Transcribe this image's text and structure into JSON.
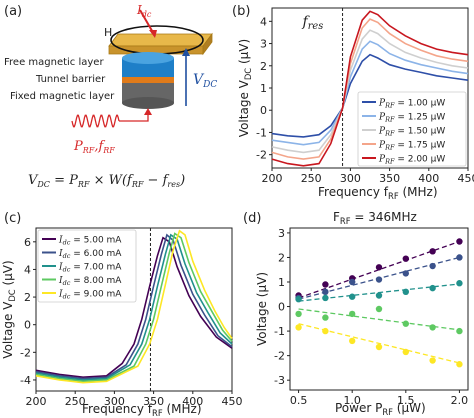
{
  "panels": {
    "a": "(a)",
    "b": "(b)",
    "c": "(c)",
    "d": "(d)"
  },
  "schematic": {
    "idc": "I",
    "idc_sub": "dc",
    "field": "H",
    "free_layer": "Free magnetic layer",
    "barrier": "Tunnel barrier",
    "fixed_layer": "Fixed magnetic layer",
    "vdc_label": "V",
    "vdc_sub": "DC",
    "prf_label": "P",
    "rf_sub": "RF",
    "frf_label": "f",
    "colors": {
      "free": "#1e7fc8",
      "barrier": "#e07b1a",
      "fixed": "#555555",
      "rf": "#d62728"
    }
  },
  "equation": {
    "lhs": "V",
    "lhs_sub": "DC",
    "eq": " = ",
    "p": "P",
    "p_sub": "RF",
    "times": " × W(",
    "f1": "f",
    "f1_sub": "RF",
    "minus": " − ",
    "f2": "f",
    "f2_sub": "res",
    "close": ")"
  },
  "chart_data": [
    {
      "panel": "b",
      "type": "line",
      "annotation": "f",
      "annotation_sub": "res",
      "vline_x": 290,
      "xlabel": "Frequency  f",
      "xlabel_sub": "RF",
      "xlabel_unit": " (MHz)",
      "ylabel": "Voltage  V",
      "ylabel_sub": "DC",
      "ylabel_unit": " (µV)",
      "xlim": [
        200,
        450
      ],
      "ylim": [
        -2.6,
        4.6
      ],
      "xticks": [
        200,
        250,
        300,
        350,
        400,
        450
      ],
      "yticks": [
        -2,
        -1,
        0,
        1,
        2,
        3,
        4
      ],
      "legend_position": "lower-right",
      "series": [
        {
          "name": "P",
          "sub": "RF",
          "value_text": " = 1.00 µW",
          "color": "#2e4fa8",
          "x": [
            200,
            220,
            240,
            260,
            275,
            290,
            300,
            315,
            325,
            335,
            350,
            370,
            390,
            410,
            430,
            450
          ],
          "y": [
            -1.05,
            -1.15,
            -1.2,
            -1.1,
            -0.7,
            0.1,
            1.2,
            2.2,
            2.5,
            2.35,
            2.05,
            1.85,
            1.7,
            1.55,
            1.45,
            1.35
          ]
        },
        {
          "name": "P",
          "sub": "RF",
          "value_text": " = 1.25 µW",
          "color": "#8cb4e8",
          "x": [
            200,
            220,
            240,
            260,
            275,
            290,
            300,
            315,
            325,
            335,
            350,
            370,
            390,
            410,
            430,
            450
          ],
          "y": [
            -1.35,
            -1.45,
            -1.55,
            -1.45,
            -0.9,
            0.1,
            1.5,
            2.75,
            3.1,
            2.95,
            2.55,
            2.25,
            2.05,
            1.9,
            1.75,
            1.65
          ]
        },
        {
          "name": "P",
          "sub": "RF",
          "value_text": " = 1.50 µW",
          "color": "#cfcfcf",
          "x": [
            200,
            220,
            240,
            260,
            275,
            290,
            300,
            315,
            325,
            335,
            350,
            370,
            390,
            410,
            430,
            450
          ],
          "y": [
            -1.65,
            -1.8,
            -1.9,
            -1.8,
            -1.1,
            0.1,
            1.8,
            3.2,
            3.6,
            3.45,
            3.0,
            2.6,
            2.35,
            2.15,
            2.0,
            1.9
          ]
        },
        {
          "name": "P",
          "sub": "RF",
          "value_text": " = 1.75 µW",
          "color": "#f4a58a",
          "x": [
            200,
            220,
            240,
            260,
            275,
            290,
            300,
            315,
            325,
            335,
            350,
            370,
            390,
            410,
            430,
            450
          ],
          "y": [
            -1.9,
            -2.1,
            -2.2,
            -2.1,
            -1.3,
            0.1,
            2.1,
            3.7,
            4.1,
            3.95,
            3.45,
            3.0,
            2.7,
            2.45,
            2.3,
            2.2
          ]
        },
        {
          "name": "P",
          "sub": "RF",
          "value_text": " = 2.00 µW",
          "color": "#c8171f",
          "x": [
            200,
            220,
            240,
            260,
            275,
            290,
            300,
            315,
            325,
            335,
            350,
            370,
            390,
            410,
            430,
            450
          ],
          "y": [
            -2.2,
            -2.4,
            -2.5,
            -2.4,
            -1.5,
            0.1,
            2.4,
            4.05,
            4.45,
            4.3,
            3.8,
            3.35,
            3.0,
            2.75,
            2.6,
            2.5
          ]
        }
      ]
    },
    {
      "panel": "c",
      "type": "line",
      "vline_x": 346,
      "xlabel": "Frequency  f",
      "xlabel_sub": "RF",
      "xlabel_unit": " (MHz)",
      "ylabel": "Voltage  V",
      "ylabel_sub": "DC",
      "ylabel_unit": " (µV)",
      "xlim": [
        200,
        450
      ],
      "ylim": [
        -4.8,
        7.0
      ],
      "xticks": [
        200,
        250,
        300,
        350,
        400,
        450
      ],
      "yticks": [
        -4,
        -2,
        0,
        2,
        4,
        6
      ],
      "legend_position": "upper-left",
      "series": [
        {
          "name": "I",
          "sub": "dc",
          "value_text": " = 5.00 mA",
          "color": "#440154",
          "x": [
            200,
            230,
            260,
            290,
            310,
            325,
            335,
            345,
            355,
            362,
            370,
            380,
            395,
            410,
            430,
            450
          ],
          "y": [
            -3.3,
            -3.6,
            -3.8,
            -3.7,
            -2.8,
            -1.4,
            0.4,
            2.8,
            5.0,
            6.3,
            6.0,
            4.2,
            2.1,
            0.6,
            -0.9,
            -1.7
          ]
        },
        {
          "name": "I",
          "sub": "dc",
          "value_text": " = 6.00 mA",
          "color": "#3b528b",
          "x": [
            200,
            230,
            260,
            290,
            315,
            330,
            340,
            350,
            360,
            367,
            375,
            385,
            400,
            415,
            432,
            450
          ],
          "y": [
            -3.4,
            -3.7,
            -3.9,
            -3.8,
            -2.9,
            -1.4,
            0.4,
            2.8,
            5.1,
            6.5,
            6.1,
            4.3,
            2.2,
            0.7,
            -0.8,
            -1.6
          ]
        },
        {
          "name": "I",
          "sub": "dc",
          "value_text": " = 7.00 mA",
          "color": "#21918c",
          "x": [
            200,
            230,
            260,
            290,
            320,
            335,
            345,
            355,
            365,
            372,
            380,
            390,
            405,
            420,
            435,
            450
          ],
          "y": [
            -3.5,
            -3.8,
            -4.0,
            -3.9,
            -2.9,
            -1.4,
            0.4,
            2.8,
            5.1,
            6.5,
            6.2,
            4.4,
            2.3,
            0.8,
            -0.6,
            -1.4
          ]
        },
        {
          "name": "I",
          "sub": "dc",
          "value_text": " = 8.00 mA",
          "color": "#5ec962",
          "x": [
            200,
            230,
            260,
            290,
            325,
            340,
            350,
            360,
            370,
            377,
            385,
            395,
            410,
            425,
            438,
            450
          ],
          "y": [
            -3.6,
            -3.9,
            -4.1,
            -4.0,
            -3.0,
            -1.4,
            0.4,
            2.8,
            5.2,
            6.6,
            6.3,
            4.5,
            2.4,
            0.9,
            -0.4,
            -1.2
          ]
        },
        {
          "name": "I",
          "sub": "dc",
          "value_text": " = 9.00 mA",
          "color": "#fde725",
          "x": [
            200,
            230,
            260,
            290,
            330,
            345,
            355,
            365,
            375,
            383,
            390,
            400,
            415,
            428,
            440,
            450
          ],
          "y": [
            -3.7,
            -4.0,
            -4.2,
            -4.1,
            -3.0,
            -1.4,
            0.4,
            2.9,
            5.4,
            6.8,
            6.5,
            4.6,
            2.5,
            1.0,
            -0.2,
            -1.0
          ]
        }
      ]
    },
    {
      "panel": "d",
      "type": "scatter",
      "title": "F",
      "title_sub": "RF",
      "title_value": " = 346MHz",
      "xlabel": "Power  P",
      "xlabel_sub": "RF",
      "xlabel_unit": " (µW)",
      "ylabel": "Voltage (µV)",
      "xlim": [
        0.42,
        2.08
      ],
      "ylim": [
        -3.4,
        3.2
      ],
      "xticks": [
        0.5,
        1.0,
        1.5,
        2.0
      ],
      "xtick_labels": [
        "0.5",
        "1.0",
        "1.5",
        "2.0"
      ],
      "yticks": [
        -3,
        -2,
        -1,
        0,
        1,
        2,
        3
      ],
      "series": [
        {
          "color": "#440154",
          "x": [
            0.5,
            0.75,
            1.0,
            1.25,
            1.5,
            1.75,
            2.0
          ],
          "y": [
            0.45,
            0.9,
            1.15,
            1.6,
            1.95,
            2.25,
            2.65
          ],
          "fit": [
            0.35,
            2.65
          ]
        },
        {
          "color": "#3b528b",
          "x": [
            0.5,
            0.75,
            1.0,
            1.25,
            1.5,
            1.75,
            2.0
          ],
          "y": [
            0.35,
            0.6,
            1.0,
            1.1,
            1.35,
            1.65,
            2.0
          ],
          "fit": [
            0.3,
            2.0
          ]
        },
        {
          "color": "#21918c",
          "x": [
            0.5,
            0.75,
            1.0,
            1.25,
            1.5,
            1.75,
            2.0
          ],
          "y": [
            0.3,
            0.35,
            0.4,
            0.45,
            0.6,
            0.75,
            0.95
          ],
          "fit": [
            0.22,
            0.92
          ]
        },
        {
          "color": "#5ec962",
          "x": [
            0.5,
            0.75,
            1.0,
            1.25,
            1.5,
            1.75,
            2.0
          ],
          "y": [
            -0.3,
            -0.45,
            -0.3,
            -0.1,
            -0.7,
            -0.85,
            -1.0
          ],
          "fit": [
            -0.1,
            -0.95
          ]
        },
        {
          "color": "#fde725",
          "x": [
            0.5,
            0.75,
            1.0,
            1.25,
            1.5,
            1.75,
            2.0
          ],
          "y": [
            -0.85,
            -1.0,
            -1.4,
            -1.65,
            -1.85,
            -2.2,
            -2.35
          ],
          "fit": [
            -0.7,
            -2.3
          ]
        }
      ]
    }
  ]
}
